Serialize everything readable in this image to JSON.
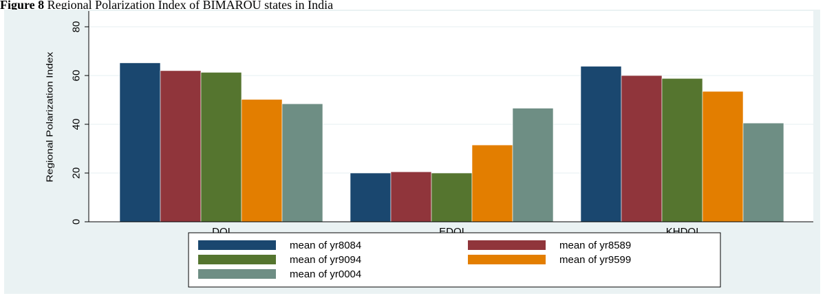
{
  "caption": {
    "label": "Figure",
    "number": "8",
    "text": "Regional Polarization Index of BIMAROU states in India"
  },
  "chart_data": {
    "type": "bar",
    "title": "",
    "xlabel": "",
    "ylabel": "Regional Polarization Index",
    "categories": [
      "DQI",
      "EDQI",
      "KHDQI"
    ],
    "ylim": [
      0,
      80
    ],
    "yticks": [
      0,
      20,
      40,
      60,
      80
    ],
    "grid": true,
    "legend_position": "bottom",
    "series": [
      {
        "name": "mean of yr8084",
        "color": "#1a476f",
        "values": [
          65.2,
          20.0,
          63.8
        ]
      },
      {
        "name": "mean of yr8589",
        "color": "#90353b",
        "values": [
          62.0,
          20.5,
          60.0
        ]
      },
      {
        "name": "mean of yr9094",
        "color": "#55752f",
        "values": [
          61.3,
          20.0,
          58.8
        ]
      },
      {
        "name": "mean of yr9599",
        "color": "#e37e00",
        "values": [
          50.2,
          31.5,
          53.5
        ]
      },
      {
        "name": "mean of yr0004",
        "color": "#6e8e84",
        "values": [
          48.4,
          46.6,
          40.5
        ]
      }
    ]
  },
  "colors": {
    "panel_background": "#eaf2f3",
    "plot_background": "#ffffff",
    "gridline": "#eaf2f3"
  }
}
